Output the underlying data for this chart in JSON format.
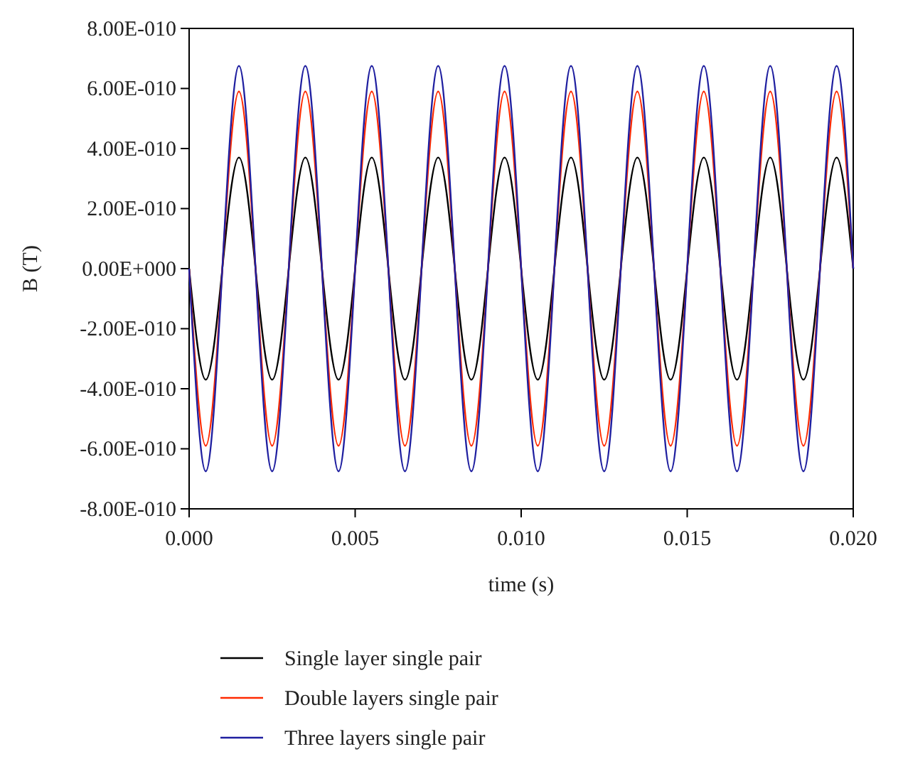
{
  "chart_data": {
    "type": "line",
    "xlabel": "time (s)",
    "ylabel": "B (T)",
    "x": [
      0,
      0.0005,
      0.001,
      0.0015,
      0.002,
      0.0025,
      0.003,
      0.0035,
      0.004,
      0.0045,
      0.005,
      0.0055,
      0.006,
      0.0065,
      0.007,
      0.0075,
      0.008,
      0.0085,
      0.009,
      0.0095,
      0.01,
      0.0105,
      0.011,
      0.0115,
      0.012,
      0.0125,
      0.013,
      0.0135,
      0.014,
      0.0145,
      0.015,
      0.0155,
      0.016,
      0.0165,
      0.017,
      0.0175,
      0.018,
      0.0185,
      0.019,
      0.0195,
      0.02
    ],
    "series": [
      {
        "name": "Single layer single pair",
        "color": "#000000",
        "values": [
          0,
          -3.7e-10,
          0,
          3.7e-10,
          0,
          -3.7e-10,
          0,
          3.7e-10,
          0,
          -3.7e-10,
          0,
          3.7e-10,
          0,
          -3.7e-10,
          0,
          3.7e-10,
          0,
          -3.7e-10,
          0,
          3.7e-10,
          0,
          -3.7e-10,
          0,
          3.7e-10,
          0,
          -3.7e-10,
          0,
          3.7e-10,
          0,
          -3.7e-10,
          0,
          3.7e-10,
          0,
          -3.7e-10,
          0,
          3.7e-10,
          0,
          -3.7e-10,
          0,
          3.7e-10,
          0
        ]
      },
      {
        "name": "Double layers single pair",
        "color": "#ff2a00",
        "values": [
          0,
          -5.9e-10,
          0,
          5.9e-10,
          0,
          -5.9e-10,
          0,
          5.9e-10,
          0,
          -5.9e-10,
          0,
          5.9e-10,
          0,
          -5.9e-10,
          0,
          5.9e-10,
          0,
          -5.9e-10,
          0,
          5.9e-10,
          0,
          -5.9e-10,
          0,
          5.9e-10,
          0,
          -5.9e-10,
          0,
          5.9e-10,
          0,
          -5.9e-10,
          0,
          5.9e-10,
          0,
          -5.9e-10,
          0,
          5.9e-10,
          0,
          -5.9e-10,
          0,
          5.9e-10,
          0
        ]
      },
      {
        "name": "Three layers single pair",
        "color": "#1f1fa0",
        "values": [
          0,
          -6.75e-10,
          0,
          6.75e-10,
          0,
          -6.75e-10,
          0,
          6.75e-10,
          0,
          -6.75e-10,
          0,
          6.75e-10,
          0,
          -6.75e-10,
          0,
          6.75e-10,
          0,
          -6.75e-10,
          0,
          6.75e-10,
          0,
          -6.75e-10,
          0,
          6.75e-10,
          0,
          -6.75e-10,
          0,
          6.75e-10,
          0,
          -6.75e-10,
          0,
          6.75e-10,
          0,
          -6.75e-10,
          0,
          6.75e-10,
          0,
          -6.75e-10,
          0,
          6.75e-10,
          0
        ]
      }
    ],
    "xlim": [
      0,
      0.02
    ],
    "xticks": [
      {
        "value": 0,
        "label": "0.000"
      },
      {
        "value": 0.005,
        "label": "0.005"
      },
      {
        "value": 0.01,
        "label": "0.010"
      },
      {
        "value": 0.015,
        "label": "0.015"
      },
      {
        "value": 0.02,
        "label": "0.020"
      }
    ],
    "ylim": [
      -8e-10,
      8e-10
    ],
    "yticks": [
      {
        "value": -8e-10,
        "label": "-8.00E-010"
      },
      {
        "value": -6e-10,
        "label": "-6.00E-010"
      },
      {
        "value": -4e-10,
        "label": "-4.00E-010"
      },
      {
        "value": -2e-10,
        "label": "-2.00E-010"
      },
      {
        "value": 0,
        "label": "0.00E+000"
      },
      {
        "value": 2e-10,
        "label": "2.00E-010"
      },
      {
        "value": 4e-10,
        "label": "4.00E-010"
      },
      {
        "value": 6e-10,
        "label": "6.00E-010"
      },
      {
        "value": 8e-10,
        "label": "8.00E-010"
      }
    ],
    "grid": false,
    "legend": "bottom",
    "marker": "none",
    "line_style": "solid"
  }
}
